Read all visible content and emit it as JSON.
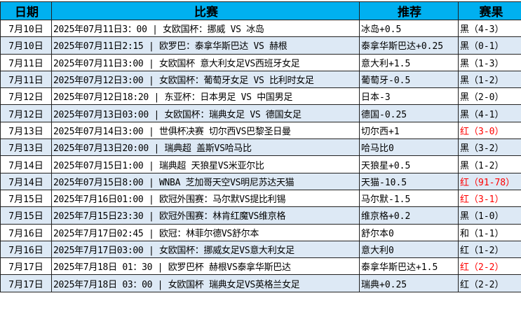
{
  "headers": [
    "日期",
    "比赛",
    "推荐",
    "赛果"
  ],
  "rows": [
    {
      "date": "7月10日",
      "match": "2025年07月11日3：00 | 女欧国杯：挪威 VS 冰岛",
      "pick": "冰岛+0.5",
      "result": "黑（4-3）",
      "red": false
    },
    {
      "date": "7月10日",
      "match": "2025年07月11日2:15 | 欧罗巴：泰拿华斯巴达 VS 赫根",
      "pick": "泰拿华斯巴达+0.25",
      "result": "黑（0-1）",
      "red": false
    },
    {
      "date": "7月11日",
      "match": "2025年07月11日3:00 | 女欧国杯 意大利女足VS西班牙女足",
      "pick": "意大利+1.5",
      "result": "黑（1-3）",
      "red": false
    },
    {
      "date": "7月11日",
      "match": "2025年07月12日3:00 | 女欧国杯：葡萄牙女足 VS 比利时女足",
      "pick": "葡萄牙-0.5",
      "result": "黑（1-2）",
      "red": false
    },
    {
      "date": "7月12日",
      "match": "2025年07月12日18:20 | 东亚杯：日本男足 VS 中国男足",
      "pick": "日本-3",
      "result": "黑（2-0）",
      "red": false
    },
    {
      "date": "7月12日",
      "match": "2025年07月13日03:00 | 女欧国杯：瑞典女足 VS 德国女足",
      "pick": "德国-0.25",
      "result": "黑（4-1）",
      "red": false
    },
    {
      "date": "7月13日",
      "match": "2025年07月14日3:00 | 世俱杯决赛 切尔西VS巴黎圣日曼",
      "pick": "切尔西+1",
      "result": "红（3-0）",
      "red": true
    },
    {
      "date": "7月13日",
      "match": "2025年07月13日20:00 | 瑞典超 盖斯VS哈马比",
      "pick": "哈马比0",
      "result": "黑（3-2）",
      "red": false
    },
    {
      "date": "7月14日",
      "match": "2025年07月15日1:00 | 瑞典超 天狼星VS米亚尔比",
      "pick": "天狼星+0.5",
      "result": "黑（1-2）",
      "red": false
    },
    {
      "date": "7月14日",
      "match": "2025年07月15日8:00 | WNBA 芝加哥天空VS明尼苏达天猫",
      "pick": "天猫-10.5",
      "result": "红（91-78）",
      "red": true
    },
    {
      "date": "7月15日",
      "match": "2025年7月16日01:00 | 欧冠外围赛：马尔默VS提比利锡",
      "pick": "马尔默-1.5",
      "result": "红（3-1）",
      "red": true
    },
    {
      "date": "7月15日",
      "match": "2025年7月15日23:30 | 欧冠外围赛：林肯红魔VS维京格",
      "pick": "维京格+0.2",
      "result": "黑（1-0）",
      "red": false
    },
    {
      "date": "7月16日",
      "match": "2025年7月17日02:45 | 欧冠：林菲尔德VS舒尔本",
      "pick": "舒尔本0",
      "result": "和（1-1）",
      "red": false
    },
    {
      "date": "7月16日",
      "match": "2025年7月17日03:00 | 女欧国杯：挪威女足VS意大利女足",
      "pick": "意大利0",
      "result": "红（1-2）",
      "red": false
    },
    {
      "date": "7月17日",
      "match": "2025年7月18日 01：30 | 欧罗巴杯 赫根VS泰拿华斯巴达",
      "pick": "泰拿华斯巴达+1.5",
      "result": "红（2-2）",
      "red": true
    },
    {
      "date": "7月17日",
      "match": "2025年7月18日 03：00 | 女欧国杯 瑞典女足VS英格兰女足",
      "pick": "瑞典+0.25",
      "result": "红（2-2）",
      "red": false
    }
  ],
  "colors": {
    "header": "#00b0f0",
    "alt_row": "#dde9f5",
    "red": "#ff0000"
  }
}
